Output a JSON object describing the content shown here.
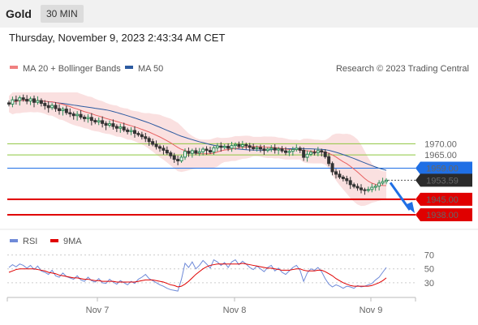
{
  "header": {
    "symbol": "Gold",
    "timeframe": "30 MIN",
    "datetime": "Thursday, November 9, 2023 2:43:34 AM CET"
  },
  "legend": {
    "items": [
      {
        "label": "MA 20 + Bollinger Bands",
        "color": "#f08080"
      },
      {
        "label": "MA 50",
        "color": "#2c5aa0"
      }
    ],
    "credit": "Research © 2023 Trading Central"
  },
  "colors": {
    "up": "#2e8b57",
    "down": "#333333",
    "resistance": "#8ec63f",
    "support": "#e00000",
    "pivot": "#1f6fe5",
    "current": "#2b2b2b",
    "band_fill": "#f6c6c6",
    "ma20": "#e86060",
    "ma50": "#2c5aa0",
    "rsi": "#6f8ad8",
    "rsi_ma": "#e00000"
  },
  "chart_data": [
    {
      "type": "candlestick",
      "title": "",
      "x_labels": [
        "Nov 7",
        "Nov 8",
        "Nov 9"
      ],
      "ylim": [
        1934,
        1976
      ],
      "levels": [
        {
          "label": "1970.00",
          "value": 1970.0,
          "kind": "resistance"
        },
        {
          "label": "1965.00",
          "value": 1965.0,
          "kind": "resistance"
        },
        {
          "label": "1959.00",
          "value": 1959.0,
          "kind": "pivot"
        },
        {
          "label": "1953.59",
          "value": 1953.59,
          "kind": "current"
        },
        {
          "label": "1945.00",
          "value": 1945.0,
          "kind": "support"
        },
        {
          "label": "1938.00",
          "value": 1938.0,
          "kind": "support"
        }
      ],
      "close": [
        1986.5,
        1988.2,
        1987.9,
        1989.0,
        1988.4,
        1987.7,
        1988.6,
        1987.2,
        1987.9,
        1986.8,
        1985.9,
        1985.1,
        1986.0,
        1984.7,
        1983.9,
        1984.5,
        1983.1,
        1982.6,
        1981.9,
        1982.4,
        1981.3,
        1980.7,
        1981.2,
        1980.0,
        1979.4,
        1979.9,
        1978.8,
        1978.1,
        1978.7,
        1977.6,
        1976.9,
        1977.4,
        1976.2,
        1975.5,
        1976.0,
        1974.7,
        1974.1,
        1973.2,
        1972.4,
        1971.0,
        1969.8,
        1968.7,
        1968.0,
        1967.1,
        1965.9,
        1964.6,
        1963.0,
        1962.3,
        1964.0,
        1966.6,
        1965.7,
        1966.9,
        1965.8,
        1966.4,
        1967.6,
        1967.0,
        1966.3,
        1968.2,
        1969.0,
        1968.4,
        1968.9,
        1968.0,
        1969.2,
        1969.7,
        1968.8,
        1969.6,
        1969.1,
        1968.4,
        1967.8,
        1968.3,
        1967.7,
        1967.0,
        1967.6,
        1968.1,
        1967.2,
        1967.7,
        1966.8,
        1966.1,
        1966.6,
        1967.4,
        1968.0,
        1967.1,
        1963.9,
        1965.3,
        1966.2,
        1966.0,
        1966.9,
        1966.3,
        1964.2,
        1961.1,
        1957.4,
        1956.3,
        1955.0,
        1954.3,
        1953.4,
        1951.6,
        1950.8,
        1950.1,
        1949.3,
        1949.0,
        1949.4,
        1950.4,
        1950.9,
        1952.3,
        1953.0,
        1953.6
      ],
      "ma20_start": 1987.0,
      "ma50_start": 1988.0
    },
    {
      "type": "line",
      "title": "",
      "series": [
        {
          "name": "RSI"
        },
        {
          "name": "9MA"
        }
      ],
      "ylim": [
        10,
        80
      ],
      "yticks": [
        70,
        50,
        30
      ],
      "rsi": [
        52,
        56,
        53,
        57,
        55,
        51,
        55,
        49,
        54,
        47,
        45,
        42,
        48,
        40,
        38,
        44,
        39,
        37,
        35,
        40,
        34,
        32,
        38,
        33,
        31,
        36,
        30,
        29,
        35,
        31,
        28,
        33,
        30,
        27,
        32,
        29,
        35,
        38,
        42,
        36,
        33,
        30,
        27,
        25,
        22,
        20,
        19,
        18,
        35,
        58,
        52,
        60,
        50,
        55,
        62,
        57,
        51,
        63,
        60,
        55,
        59,
        52,
        60,
        63,
        56,
        61,
        57,
        52,
        49,
        54,
        50,
        46,
        52,
        55,
        47,
        51,
        45,
        42,
        47,
        52,
        55,
        48,
        32,
        44,
        50,
        48,
        52,
        46,
        36,
        28,
        24,
        27,
        25,
        22,
        25,
        24,
        22,
        26,
        24,
        25,
        27,
        29,
        34,
        38,
        45,
        52
      ],
      "rsi_ma": [
        45,
        47,
        49,
        50,
        50,
        50,
        50,
        50,
        49,
        48,
        47,
        45,
        44,
        43,
        41,
        40,
        39,
        38,
        37,
        37,
        36,
        35,
        35,
        34,
        33,
        33,
        32,
        32,
        32,
        32,
        31,
        31,
        31,
        31,
        31,
        31,
        32,
        33,
        34,
        34,
        34,
        33,
        32,
        31,
        29,
        27,
        26,
        24,
        25,
        28,
        32,
        37,
        42,
        46,
        50,
        53,
        55,
        56,
        57,
        57,
        57,
        57,
        57,
        57,
        57,
        58,
        57,
        56,
        55,
        54,
        53,
        52,
        51,
        51,
        50,
        49,
        48,
        48,
        48,
        49,
        50,
        50,
        48,
        47,
        47,
        47,
        48,
        48,
        46,
        43,
        40,
        36,
        33,
        30,
        28,
        26,
        25,
        25,
        25,
        25,
        25,
        26,
        28,
        30,
        33,
        37
      ]
    }
  ]
}
